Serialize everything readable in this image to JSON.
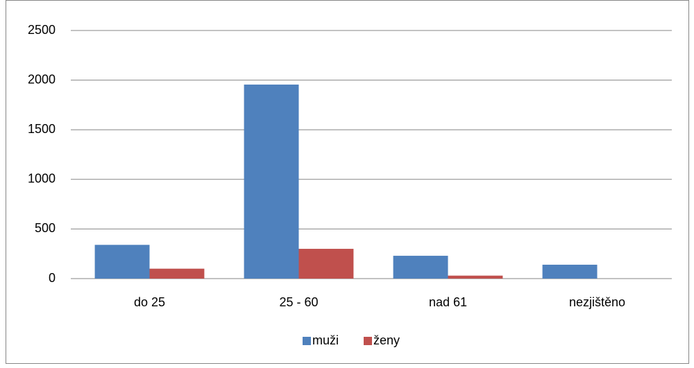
{
  "chart_data": {
    "type": "bar",
    "categories": [
      "do 25",
      "25 - 60",
      "nad 61",
      "nezjištěno"
    ],
    "series": [
      {
        "name": "muži",
        "color": "#4f81bd",
        "values": [
          340,
          1955,
          230,
          140
        ]
      },
      {
        "name": "ženy",
        "color": "#c0504d",
        "values": [
          100,
          300,
          30,
          0
        ]
      }
    ],
    "ylim": [
      0,
      2500
    ],
    "yticks": [
      0,
      500,
      1000,
      1500,
      2000,
      2500
    ],
    "grid": true,
    "legend": "bottom"
  }
}
